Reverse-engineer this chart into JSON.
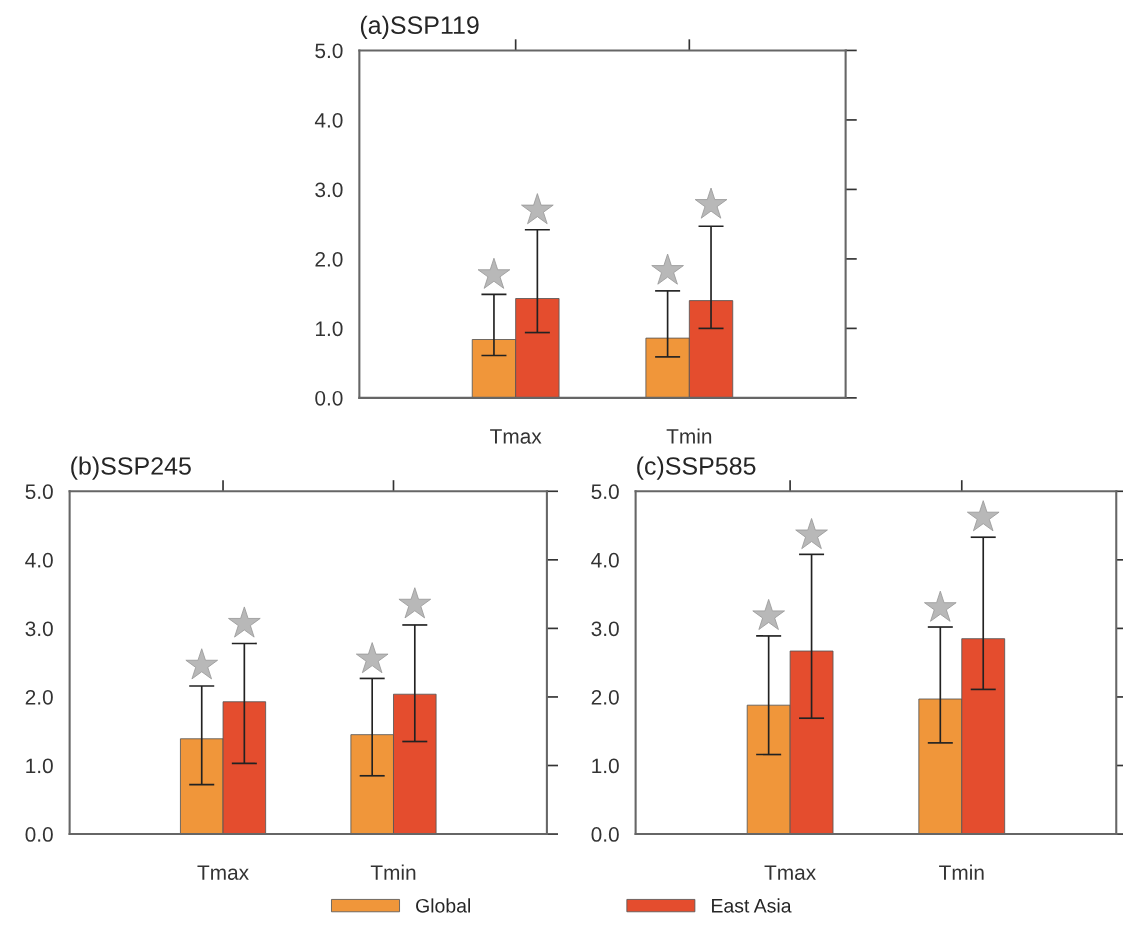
{
  "chart_data": [
    {
      "type": "bar",
      "title": "(a)SSP119",
      "categories": [
        "Tmax",
        "Tmin"
      ],
      "ylim": [
        0,
        5
      ],
      "yticks": [
        {
          "value": 0,
          "label": "0.0"
        },
        {
          "value": 1,
          "label": "1.0"
        },
        {
          "value": 2,
          "label": "2.0"
        },
        {
          "value": 3,
          "label": "3.0"
        },
        {
          "value": 4,
          "label": "4.0"
        },
        {
          "value": 5,
          "label": "5.0"
        }
      ],
      "grid": false,
      "legend": "bottom",
      "series": [
        {
          "name": "Global",
          "color": "#f0963a",
          "values": [
            0.84,
            0.86
          ],
          "errors": [
            [
              0.61,
              1.49
            ],
            [
              0.59,
              1.54
            ]
          ]
        },
        {
          "name": "East Asia",
          "color": "#e44d2e",
          "values": [
            1.43,
            1.4
          ],
          "errors": [
            [
              0.94,
              2.42
            ],
            [
              1.0,
              2.47
            ]
          ]
        },
        {
          "type": "scatter",
          "marker": "star",
          "color": "#b8b8b8",
          "x": [
            "Tmax",
            "Tmin"
          ],
          "values": [
            1.77,
            1.83
          ]
        },
        {
          "type": "scatter",
          "marker": "star",
          "color": "#b8b8b8",
          "x": [
            "Tmax",
            "Tmin"
          ],
          "values": [
            2.7,
            2.78
          ]
        }
      ]
    },
    {
      "type": "bar",
      "title": "(b)SSP245",
      "categories": [
        "Tmax",
        "Tmin"
      ],
      "ylim": [
        0,
        5
      ],
      "yticks": [
        {
          "value": 0,
          "label": "0.0"
        },
        {
          "value": 1,
          "label": "1.0"
        },
        {
          "value": 2,
          "label": "2.0"
        },
        {
          "value": 3,
          "label": "3.0"
        },
        {
          "value": 4,
          "label": "4.0"
        },
        {
          "value": 5,
          "label": "5.0"
        }
      ],
      "grid": false,
      "series": [
        {
          "color": "#f0963a",
          "values": [
            1.39,
            1.45
          ],
          "errors": [
            [
              0.72,
              2.16
            ],
            [
              0.85,
              2.27
            ]
          ]
        },
        {
          "color": "#e44d2e",
          "values": [
            1.93,
            2.04
          ],
          "errors": [
            [
              1.03,
              2.78
            ],
            [
              1.35,
              3.05
            ]
          ]
        },
        {
          "type": "scatter",
          "marker": "star",
          "color": "#b8b8b8",
          "x": [
            "Tmax",
            "Tmin"
          ],
          "values": [
            2.46,
            2.55
          ]
        },
        {
          "type": "scatter",
          "marker": "star",
          "color": "#b8b8b8",
          "x": [
            "Tmax",
            "Tmin"
          ],
          "values": [
            3.07,
            3.35
          ]
        }
      ]
    },
    {
      "type": "bar",
      "title": "(c)SSP585",
      "categories": [
        "Tmax",
        "Tmin"
      ],
      "ylim": [
        0,
        5
      ],
      "yticks": [
        {
          "value": 0,
          "label": "0.0"
        },
        {
          "value": 1,
          "label": "1.0"
        },
        {
          "value": 2,
          "label": "2.0"
        },
        {
          "value": 3,
          "label": "3.0"
        },
        {
          "value": 4,
          "label": "4.0"
        },
        {
          "value": 5,
          "label": "5.0"
        }
      ],
      "grid": false,
      "series": [
        {
          "color": "#f0963a",
          "values": [
            1.88,
            1.97
          ],
          "errors": [
            [
              1.16,
              2.89
            ],
            [
              1.33,
              3.02
            ]
          ]
        },
        {
          "color": "#e44d2e",
          "values": [
            2.67,
            2.85
          ],
          "errors": [
            [
              1.69,
              4.08
            ],
            [
              2.11,
              4.33
            ]
          ]
        },
        {
          "type": "scatter",
          "marker": "star",
          "color": "#b8b8b8",
          "x": [
            "Tmax",
            "Tmin"
          ],
          "values": [
            3.18,
            3.3
          ]
        },
        {
          "type": "scatter",
          "marker": "star",
          "color": "#b8b8b8",
          "x": [
            "Tmax",
            "Tmin"
          ],
          "values": [
            4.36,
            4.62
          ]
        }
      ]
    }
  ]
}
